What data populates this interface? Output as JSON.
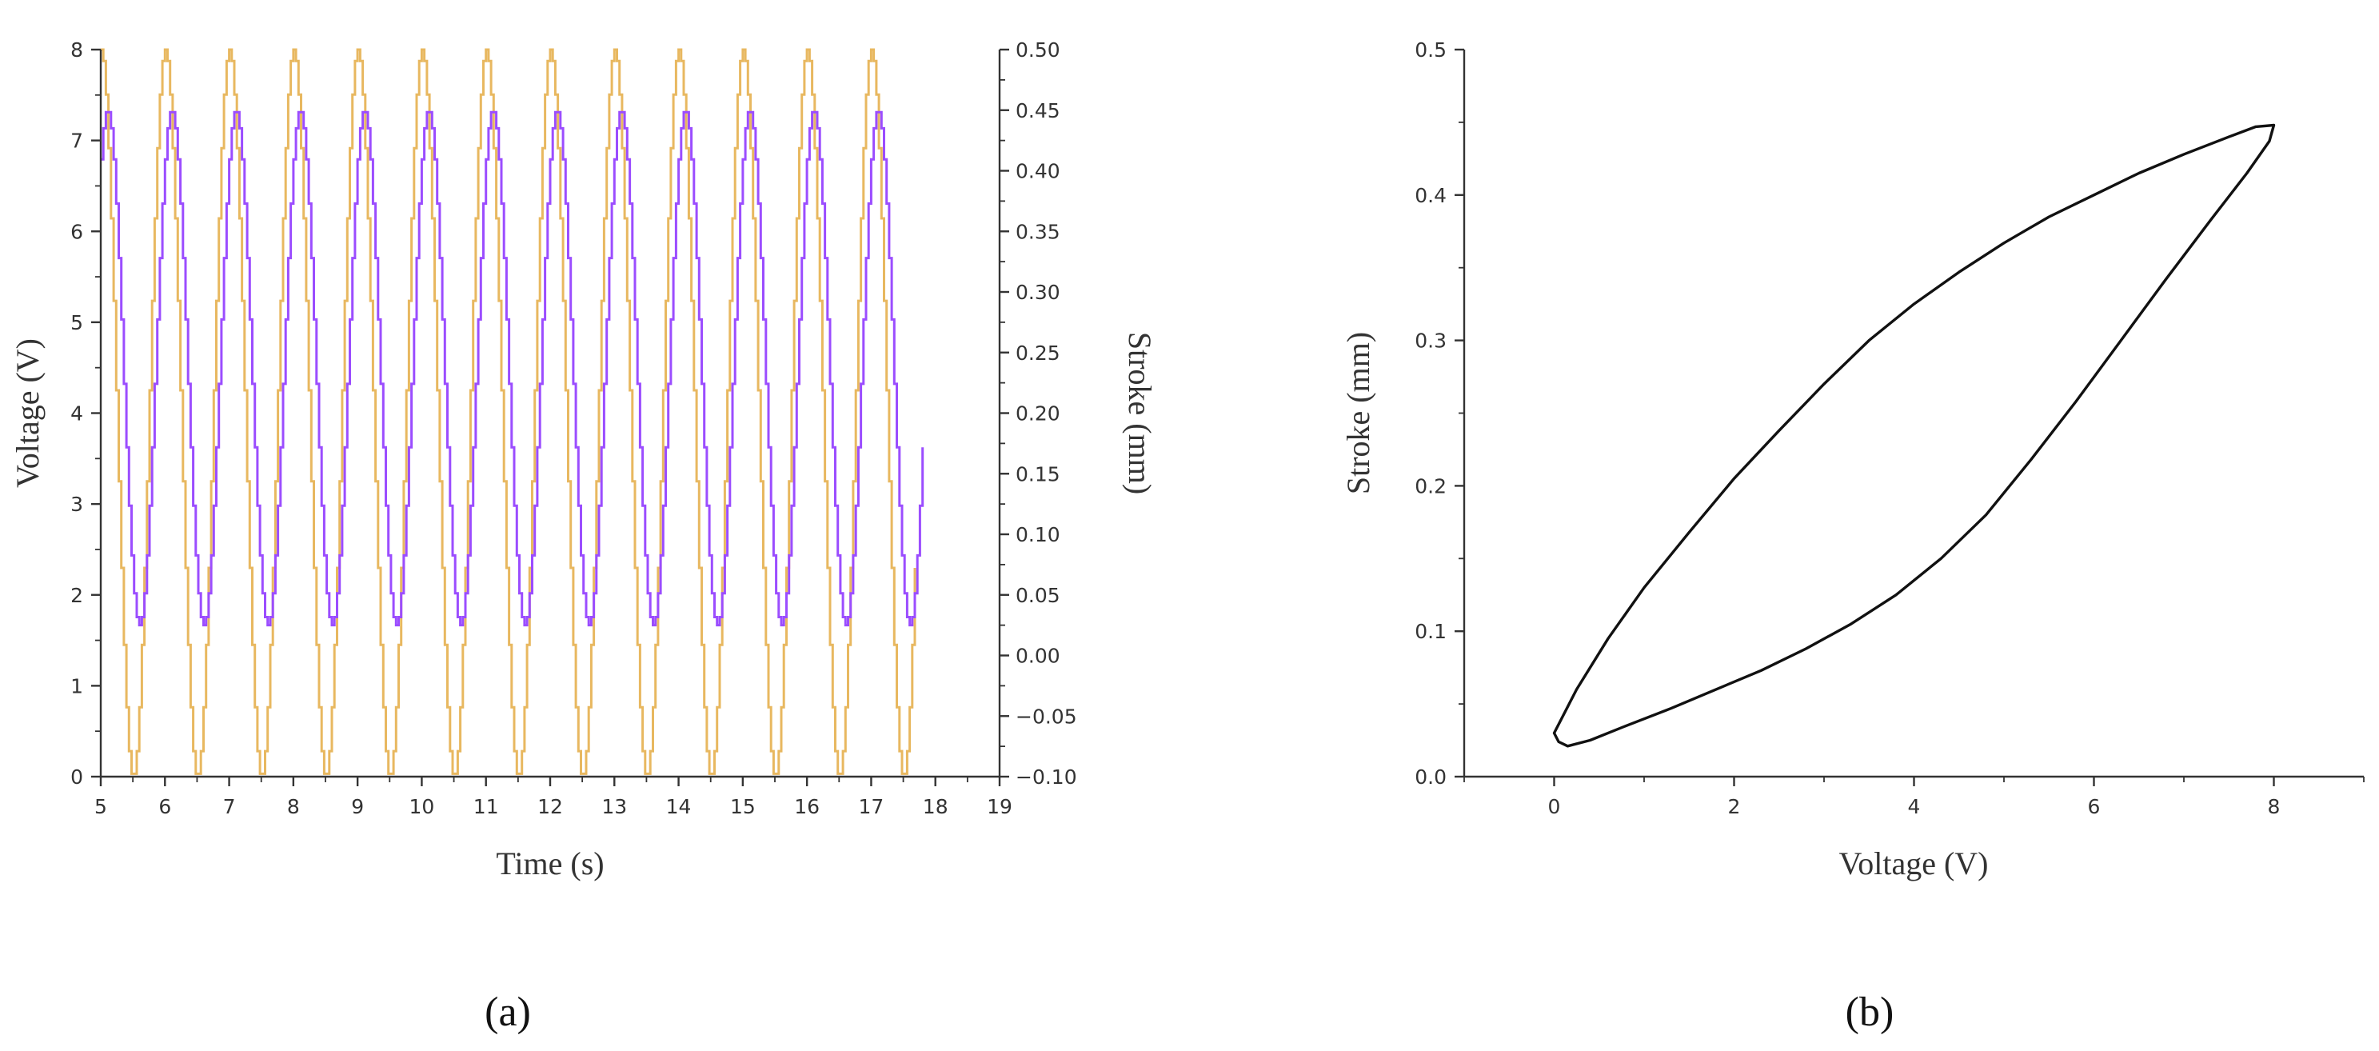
{
  "charts": [
    {
      "type": "line",
      "panel_label": "(a)",
      "xlabel": "Time (s)",
      "ylabel_left": "Voltage (V)",
      "ylabel_right": "Stroke (mm)",
      "xlim": [
        5,
        19
      ],
      "ylim_left": [
        0,
        8
      ],
      "ylim_right": [
        -0.1,
        0.5
      ],
      "xticks": [
        5,
        6,
        7,
        8,
        9,
        10,
        11,
        12,
        13,
        14,
        15,
        16,
        17,
        18,
        19
      ],
      "yticks_left": [
        0,
        1,
        2,
        3,
        4,
        5,
        6,
        7,
        8
      ],
      "yticks_right": [
        -0.1,
        -0.05,
        0.0,
        0.05,
        0.1,
        0.15,
        0.2,
        0.25,
        0.3,
        0.35,
        0.4,
        0.45,
        0.5
      ],
      "series": [
        {
          "axis": "left",
          "color": "#e8b860",
          "signal": "sine",
          "x_start": 5.0,
          "x_end": 17.7,
          "period": 1.0,
          "min": 0,
          "max": 8,
          "peak_times": [
            5.0,
            6.0,
            7.0,
            8.0,
            9.0,
            10.0,
            11.0,
            12.0,
            13.0,
            14.0,
            15.0,
            16.0,
            17.0
          ]
        },
        {
          "axis": "right",
          "color": "#9b4dff",
          "signal": "sine",
          "x_start": 5.0,
          "x_end": 17.8,
          "period": 1.0,
          "min": 0.025,
          "max": 0.45,
          "peak_times": [
            5.1,
            6.1,
            7.1,
            8.1,
            9.1,
            10.1,
            11.1,
            12.1,
            13.1,
            14.1,
            15.1,
            16.1,
            17.1
          ]
        }
      ]
    },
    {
      "type": "line",
      "panel_label": "(b)",
      "xlabel": "Voltage (V)",
      "ylabel": "Stroke (mm)",
      "xlim": [
        -1,
        9
      ],
      "ylim": [
        0,
        0.5
      ],
      "xticks": [
        0,
        2,
        4,
        6,
        8
      ],
      "yticks": [
        0.0,
        0.1,
        0.2,
        0.3,
        0.4,
        0.5
      ],
      "series": [
        {
          "color": "#111111",
          "shape": "hysteresis-loop",
          "x": [
            0.0,
            0.25,
            0.6,
            1.0,
            1.5,
            2.0,
            2.5,
            3.0,
            3.5,
            4.0,
            4.5,
            5.0,
            5.5,
            6.0,
            6.5,
            7.0,
            7.5,
            7.8,
            8.0,
            7.95,
            7.7,
            7.3,
            6.8,
            6.3,
            5.8,
            5.3,
            4.8,
            4.3,
            3.8,
            3.3,
            2.8,
            2.3,
            1.8,
            1.3,
            0.8,
            0.4,
            0.15,
            0.05,
            0.0
          ],
          "y": [
            0.03,
            0.06,
            0.095,
            0.13,
            0.168,
            0.205,
            0.238,
            0.27,
            0.3,
            0.325,
            0.347,
            0.367,
            0.385,
            0.4,
            0.415,
            0.428,
            0.44,
            0.447,
            0.448,
            0.437,
            0.415,
            0.383,
            0.342,
            0.3,
            0.258,
            0.218,
            0.18,
            0.15,
            0.125,
            0.105,
            0.088,
            0.073,
            0.06,
            0.047,
            0.035,
            0.025,
            0.021,
            0.024,
            0.03
          ]
        }
      ]
    }
  ]
}
